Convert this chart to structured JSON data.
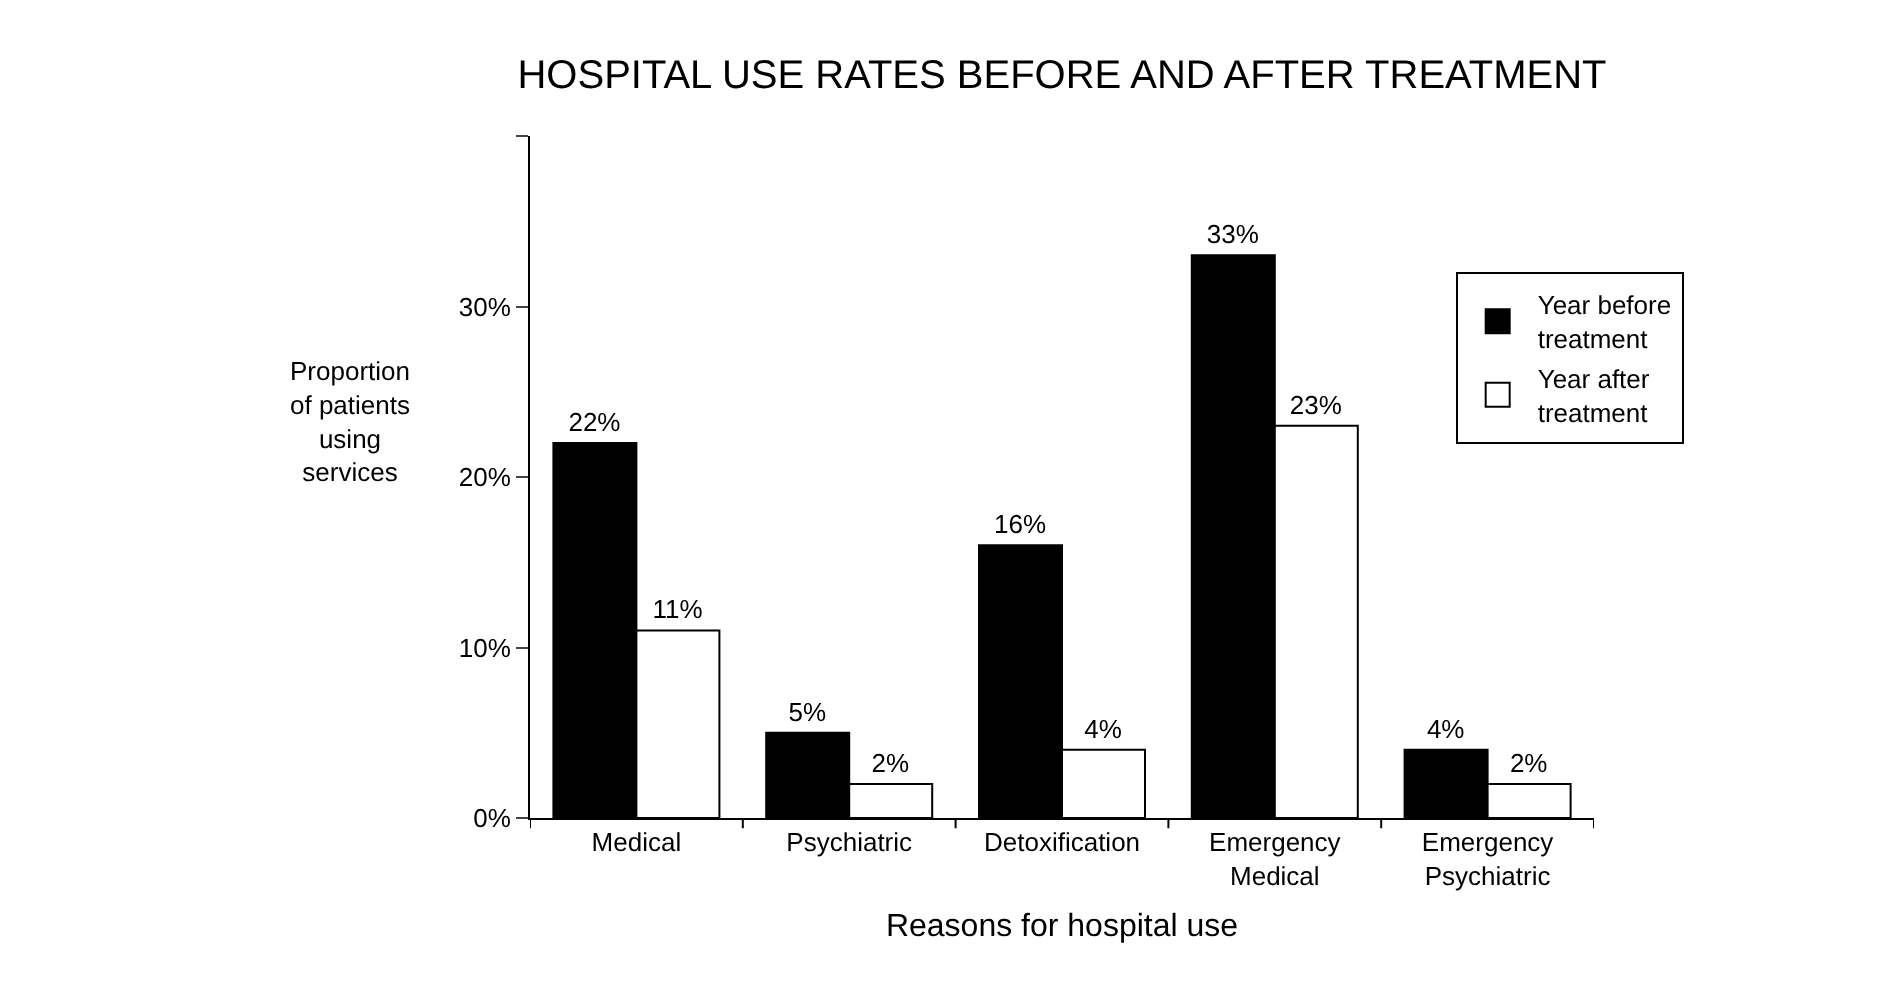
{
  "chart_data": {
    "type": "bar",
    "title": "HOSPITAL USE RATES BEFORE AND AFTER TREATMENT",
    "xlabel": "Reasons for hospital use",
    "ylabel": "Proportion\nof patients\nusing\nservices",
    "categories": [
      "Medical",
      "Psychiatric",
      "Detoxification",
      "Emergency\nMedical",
      "Emergency\nPsychiatric"
    ],
    "series": [
      {
        "name": "Year before\ntreatment",
        "color": "#000000",
        "values": [
          22,
          5,
          16,
          33,
          4
        ],
        "value_labels": [
          "22%",
          "5%",
          "16%",
          "33%",
          "4%"
        ]
      },
      {
        "name": "Year after\ntreatment",
        "color": "#ffffff",
        "values": [
          11,
          2,
          4,
          23,
          2
        ],
        "value_labels": [
          "11%",
          "2%",
          "4%",
          "23%",
          "2%"
        ]
      }
    ],
    "ylim": [
      0,
      40
    ],
    "yticks": [
      {
        "value": 0,
        "label": "0%"
      },
      {
        "value": 10,
        "label": "10%"
      },
      {
        "value": 20,
        "label": "20%"
      },
      {
        "value": 30,
        "label": "30%"
      },
      {
        "value": 40,
        "label": null
      }
    ],
    "legend": "top right"
  }
}
